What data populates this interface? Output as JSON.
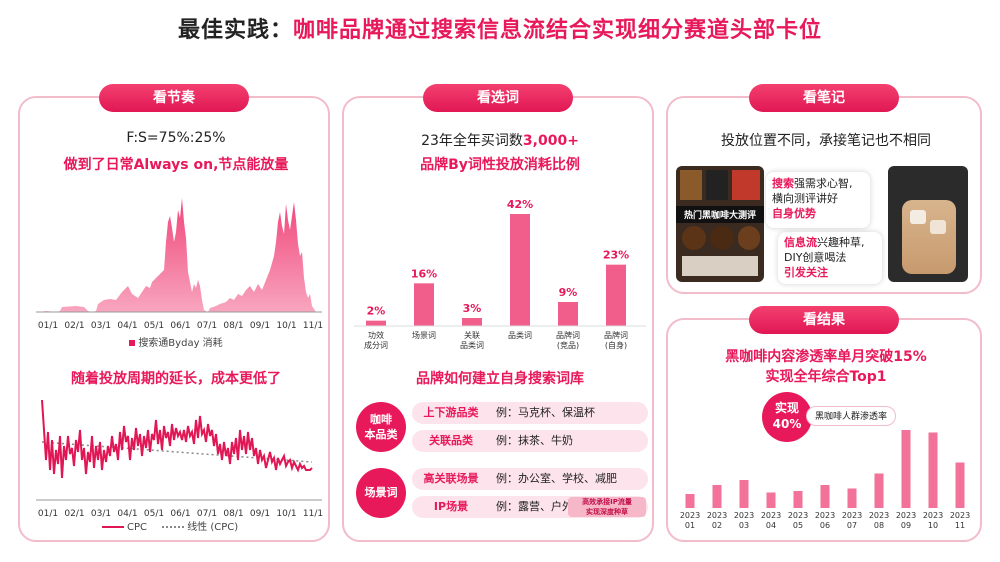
{
  "title": {
    "prefix": "最佳实践：",
    "main": "咖啡品牌通过搜索信息流结合实现细分赛道头部卡位"
  },
  "rhythm": {
    "pill": "看节奏",
    "ratio": "F:S=75%:25%",
    "subtitle": "做到了日常Always on,节点能放量",
    "months": [
      "01/1",
      "02/1",
      "03/1",
      "04/1",
      "05/1",
      "06/1",
      "07/1",
      "08/1",
      "09/1",
      "10/1",
      "11/1"
    ],
    "legend": "搜索通Byday 消耗",
    "subtitle2": "随着投放周期的延长，成本更低了",
    "legend_cpc": "CPC",
    "legend_trend": "线性 (CPC)"
  },
  "words": {
    "pill": "看选词",
    "headline_prefix": "23年全年买词数",
    "headline_value": "3,000+",
    "subtitle": "品牌By词性投放消耗比例",
    "how_title": "品牌如何建立自身搜索词库",
    "group1_label": [
      "咖啡",
      "本品类"
    ],
    "group1_rows": [
      {
        "tag": "上下游品类",
        "text": "例：马克杯、保温杯"
      },
      {
        "tag": "关联品类",
        "text": "例：抹茶、牛奶"
      }
    ],
    "group2_label": "场景词",
    "group2_rows": [
      {
        "tag": "高关联场景",
        "text": "例：办公室、学校、减肥"
      },
      {
        "tag": "IP场景",
        "text": "例：露营、户外"
      }
    ],
    "ip_badge": [
      "高效承接IP流量",
      "实现深度种草"
    ]
  },
  "chart_data": [
    {
      "type": "bar",
      "title": "品牌By词性投放消耗比例",
      "categories": [
        [
          "功效",
          "成分词"
        ],
        [
          "场景词"
        ],
        [
          "关联",
          "品类词"
        ],
        [
          "品类词"
        ],
        [
          "品牌词",
          "(竞品)"
        ],
        [
          "品牌词",
          "(自身)"
        ]
      ],
      "values": [
        2,
        16,
        3,
        42,
        9,
        23
      ],
      "value_labels": [
        "2%",
        "16%",
        "3%",
        "42%",
        "9%",
        "23%"
      ],
      "ylim": [
        0,
        45
      ]
    },
    {
      "type": "bar",
      "title": "黑咖啡内容渗透率单月突破15%",
      "categories": [
        [
          "2023",
          "01"
        ],
        [
          "2023",
          "02"
        ],
        [
          "2023",
          "03"
        ],
        [
          "2023",
          "04"
        ],
        [
          "2023",
          "05"
        ],
        [
          "2023",
          "06"
        ],
        [
          "2023",
          "07"
        ],
        [
          "2023",
          "08"
        ],
        [
          "2023",
          "09"
        ],
        [
          "2023",
          "10"
        ],
        [
          "2023",
          "11"
        ]
      ],
      "values": [
        2.8,
        4.6,
        5.6,
        3.1,
        3.4,
        4.6,
        3.9,
        6.9,
        15.6,
        15.1,
        9.1
      ],
      "ylim": [
        0,
        16
      ]
    }
  ],
  "notes": {
    "pill": "看笔记",
    "subtitle": "投放位置不同，承接笔记也不相同",
    "search_kw": "搜索",
    "search_line1_rest": "强需求心智,",
    "search_line2": "横向测评讲好",
    "search_line3": "自身优势",
    "feed_kw": "信息流",
    "feed_line1_rest": "兴趣种草,",
    "feed_line2": "DIY创意喝法",
    "feed_line3": "引发关注",
    "photo1_caption": "热门黑咖啡大测评"
  },
  "result": {
    "pill": "看结果",
    "line1": "黑咖啡内容渗透率单月突破15%",
    "line2": "实现全年综合Top1",
    "badge_label": "实现",
    "badge_value": "40%",
    "badge_tag": "黑咖啡人群渗透率"
  }
}
